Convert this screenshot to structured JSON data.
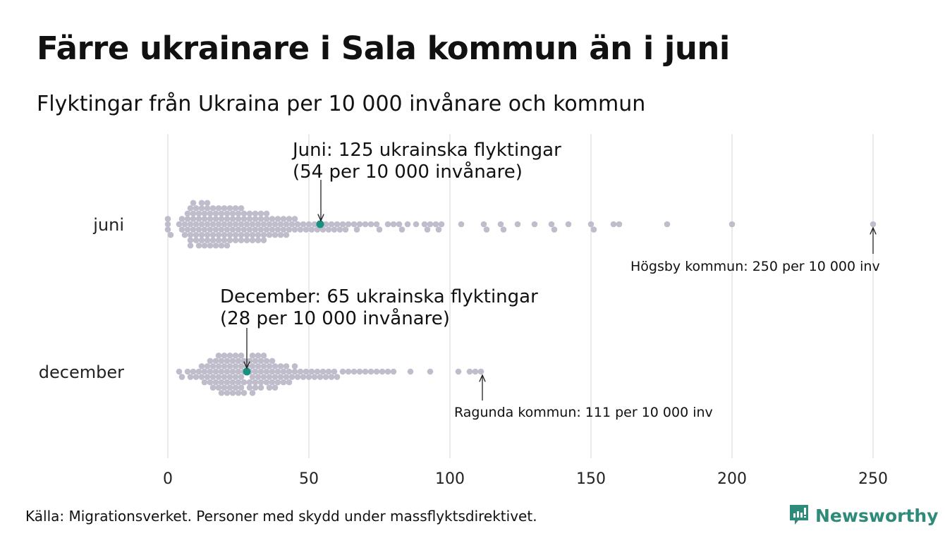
{
  "title": "Färre ukrainare i Sala kommun än i juni",
  "subtitle": "Flyktingar från Ukraina per 10 000 invånare och kommun",
  "source": "Källa: Migrationsverket. Personer med skydd under massflyktsdirektivet.",
  "brand": "Newsworthy",
  "colors": {
    "dot": "#bfbdcb",
    "highlight": "#1a9080",
    "grid": "#d4d4d4",
    "brand": "#2e8b7a"
  },
  "chart_data": {
    "type": "scatter",
    "subtype": "beeswarm",
    "title": "Färre ukrainare i Sala kommun än i juni",
    "xlabel": "",
    "ylabel": "",
    "xlim": [
      0,
      250
    ],
    "xticks": [
      "0",
      "50",
      "100",
      "150",
      "200",
      "250"
    ],
    "xtick_values": [
      0,
      50,
      100,
      150,
      200,
      250
    ],
    "grid": true,
    "series": [
      {
        "name": "juni",
        "highlight": 54,
        "values": [
          0,
          0,
          0,
          1,
          4,
          5,
          5,
          6,
          6,
          7,
          7,
          7,
          8,
          8,
          8,
          8,
          8,
          9,
          9,
          9,
          9,
          10,
          10,
          10,
          10,
          11,
          11,
          11,
          11,
          12,
          12,
          12,
          12,
          12,
          13,
          13,
          13,
          13,
          14,
          14,
          14,
          14,
          14,
          15,
          15,
          15,
          15,
          16,
          16,
          16,
          16,
          17,
          17,
          17,
          17,
          18,
          18,
          18,
          18,
          19,
          19,
          19,
          19,
          20,
          20,
          20,
          20,
          21,
          21,
          21,
          21,
          22,
          22,
          22,
          22,
          23,
          23,
          23,
          24,
          24,
          24,
          24,
          25,
          25,
          25,
          26,
          26,
          26,
          26,
          27,
          27,
          27,
          28,
          28,
          28,
          29,
          29,
          29,
          30,
          30,
          30,
          31,
          31,
          31,
          32,
          32,
          32,
          33,
          33,
          33,
          34,
          34,
          34,
          35,
          35,
          35,
          36,
          36,
          37,
          37,
          38,
          38,
          39,
          39,
          40,
          40,
          41,
          41,
          42,
          42,
          43,
          43,
          44,
          45,
          45,
          46,
          47,
          48,
          49,
          50,
          51,
          52,
          53,
          54,
          55,
          56,
          57,
          58,
          59,
          60,
          61,
          62,
          63,
          64,
          66,
          67,
          68,
          70,
          72,
          74,
          75,
          78,
          80,
          82,
          83,
          85,
          88,
          91,
          92,
          93,
          95,
          96,
          97,
          104,
          112,
          113,
          118,
          119,
          124,
          130,
          136,
          137,
          142,
          150,
          151,
          158,
          160,
          177,
          200,
          250
        ]
      },
      {
        "name": "december",
        "highlight": 28,
        "values": [
          4,
          5,
          7,
          8,
          9,
          10,
          11,
          12,
          12,
          13,
          13,
          14,
          14,
          15,
          15,
          15,
          16,
          16,
          16,
          17,
          17,
          17,
          18,
          18,
          18,
          18,
          19,
          19,
          19,
          19,
          20,
          20,
          20,
          20,
          21,
          21,
          21,
          21,
          22,
          22,
          22,
          22,
          23,
          23,
          23,
          23,
          24,
          24,
          24,
          24,
          25,
          25,
          25,
          25,
          26,
          26,
          26,
          26,
          27,
          27,
          27,
          27,
          28,
          28,
          29,
          29,
          29,
          29,
          30,
          30,
          30,
          30,
          31,
          31,
          31,
          31,
          32,
          32,
          32,
          33,
          33,
          33,
          33,
          34,
          34,
          34,
          35,
          35,
          35,
          36,
          36,
          36,
          37,
          37,
          37,
          38,
          38,
          38,
          39,
          39,
          40,
          40,
          41,
          41,
          42,
          42,
          43,
          43,
          44,
          45,
          45,
          46,
          47,
          48,
          49,
          50,
          51,
          52,
          53,
          54,
          55,
          56,
          57,
          58,
          59,
          60,
          62,
          64,
          66,
          68,
          70,
          72,
          74,
          76,
          78,
          80,
          86,
          93,
          103,
          107,
          109,
          111
        ]
      }
    ],
    "annotations": [
      {
        "series": "juni",
        "value": 54,
        "lines": [
          "Juni: 125 ukrainska flyktingar",
          "(54 per 10 000 invånare)"
        ]
      },
      {
        "series": "juni",
        "value": 250,
        "lines": [
          "Högsby kommun: 250 per 10 000 inv"
        ]
      },
      {
        "series": "december",
        "value": 28,
        "lines": [
          "December:  65 ukrainska flyktingar",
          "(28 per 10 000 invånare)"
        ]
      },
      {
        "series": "december",
        "value": 111,
        "lines": [
          "Ragunda kommun: 111 per 10 000 inv"
        ]
      }
    ]
  }
}
